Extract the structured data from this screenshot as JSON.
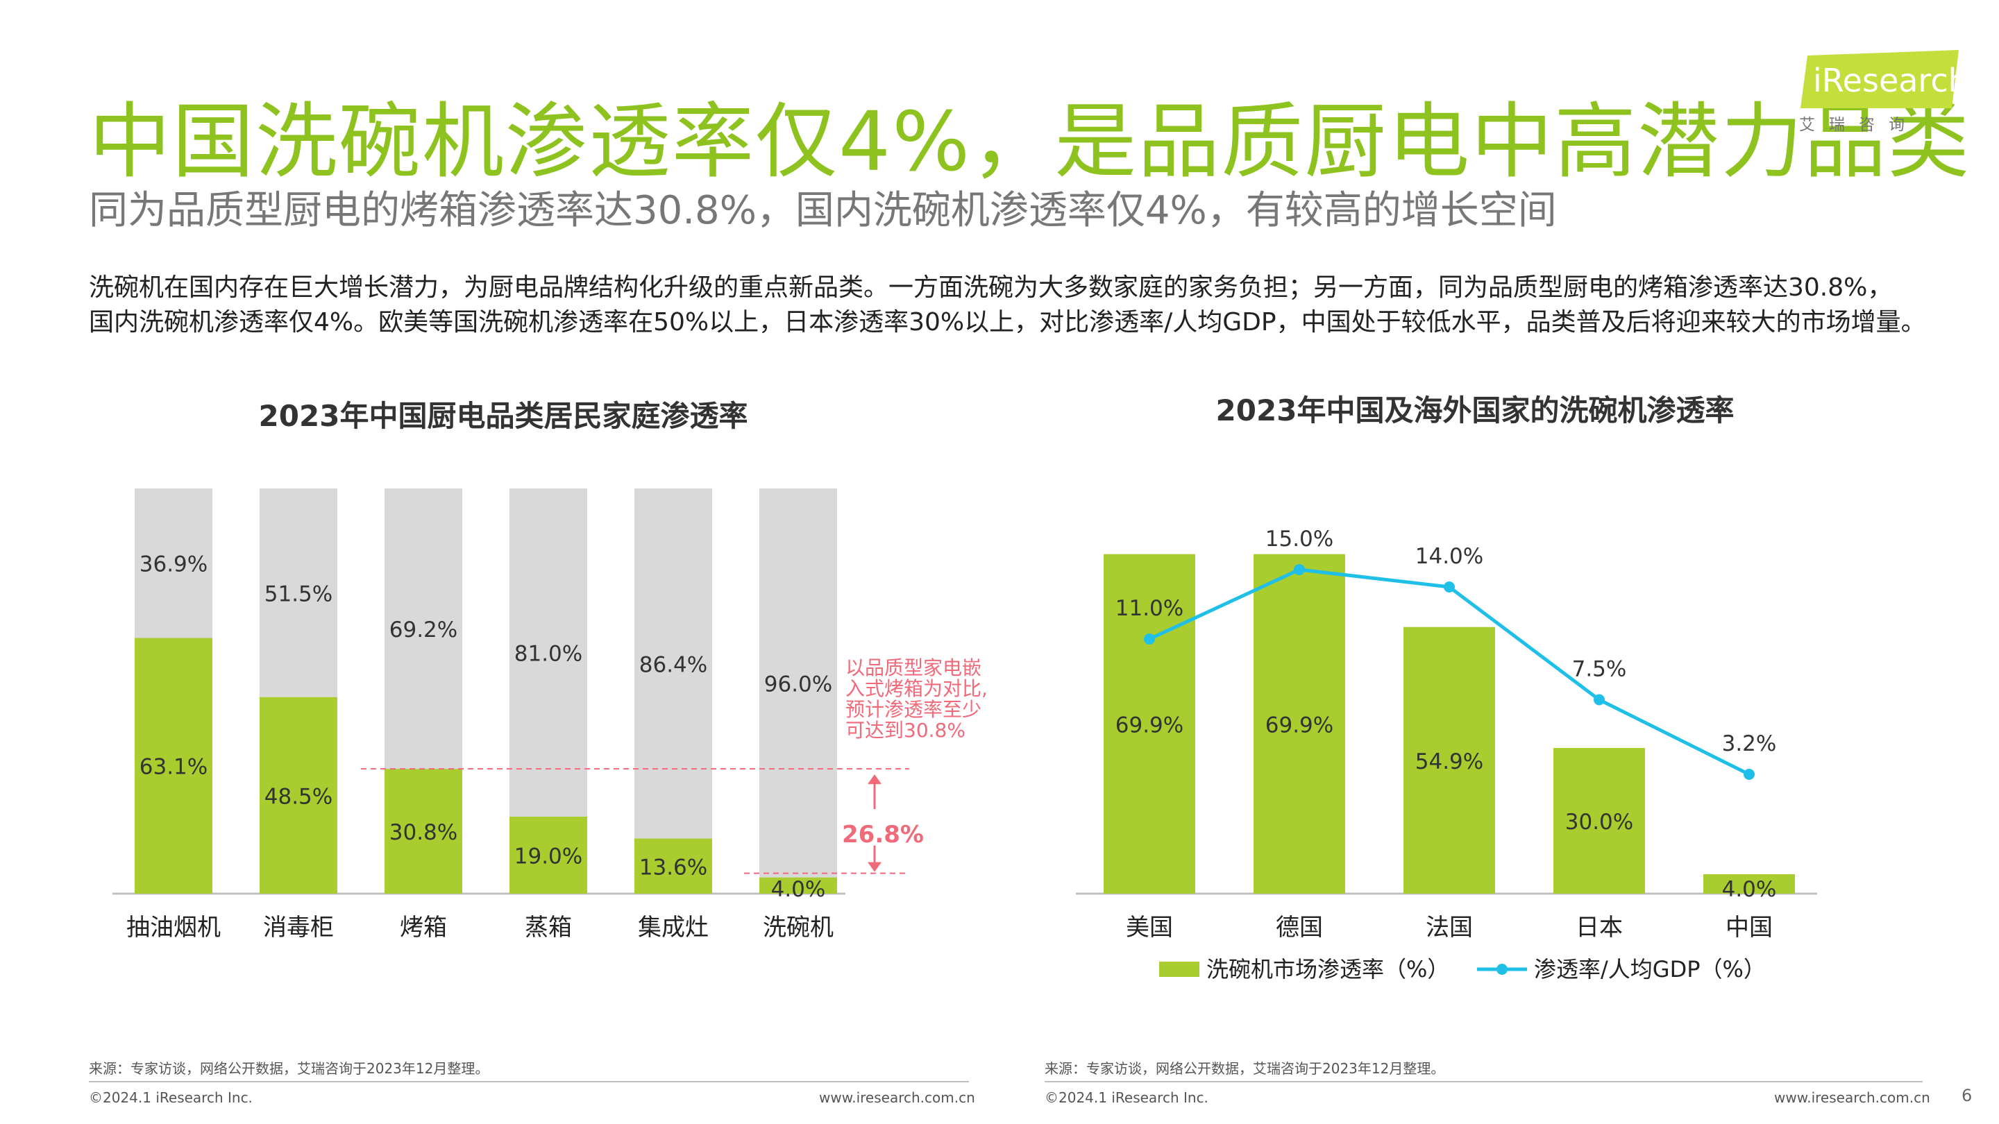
{
  "header": {
    "title": "中国洗碗机渗透率仅4%，是品质厨电中高潜力品类",
    "subtitle": "同为品质型厨电的烤箱渗透率达30.8%，国内洗碗机渗透率仅4%，有较高的增长空间",
    "description_line1": "洗碗机在国内存在巨大增长潜力，为厨电品牌结构化升级的重点新品类。一方面洗碗为大多数家庭的家务负担；另一方面，同为品质型厨电的烤箱渗透率达30.8%，",
    "description_line2": "国内洗碗机渗透率仅4%。欧美等国洗碗机渗透率在50%以上，日本渗透率30%以上，对比渗透率/人均GDP，中国处于较低水平，品类普及后将迎来较大的市场增量。"
  },
  "logo": {
    "text": "iResearch",
    "subtitle": "艾瑞咨询"
  },
  "colors": {
    "green": "#a9cc2e",
    "title_green": "#8dc21f",
    "grey": "#d9d9d9",
    "blue": "#1fbfe8",
    "red": "#f06a7a"
  },
  "chart_data": [
    {
      "type": "bar",
      "stacked": true,
      "title": "2023年中国厨电品类居民家庭渗透率",
      "categories": [
        "抽油烟机",
        "消毒柜",
        "烤箱",
        "蒸箱",
        "集成灶",
        "洗碗机"
      ],
      "series": [
        {
          "values": [
            63.1,
            48.5,
            30.8,
            19.0,
            13.6,
            4.0
          ],
          "labels": [
            "63.1%",
            "48.5%",
            "30.8%",
            "19.0%",
            "13.6%",
            "4.0%"
          ]
        },
        {
          "values": [
            36.9,
            51.5,
            69.2,
            81.0,
            86.4,
            96.0
          ],
          "labels": [
            "36.9%",
            "51.5%",
            "69.2%",
            "81.0%",
            "86.4%",
            "96.0%"
          ]
        }
      ],
      "ylim": [
        0,
        100
      ],
      "annotation": {
        "note_lines": [
          "以品质型家电嵌",
          "入式烤箱为对比,",
          "预计渗透率至少",
          "可达到30.8%"
        ],
        "gap_label": "26.8%"
      }
    },
    {
      "type": "bar+line",
      "title": "2023年中国及海外国家的洗碗机渗透率",
      "categories": [
        "美国",
        "德国",
        "法国",
        "日本",
        "中国"
      ],
      "series": [
        {
          "name": "洗碗机市场渗透率（%）",
          "type": "bar",
          "values": [
            69.9,
            69.9,
            54.9,
            30.0,
            4.0
          ],
          "labels": [
            "69.9%",
            "69.9%",
            "54.9%",
            "30.0%",
            "4.0%"
          ]
        },
        {
          "name": "渗透率/人均GDP（%）",
          "type": "line",
          "values": [
            11.0,
            15.0,
            14.0,
            7.5,
            3.2
          ],
          "labels": [
            "11.0%",
            "15.0%",
            "14.0%",
            "7.5%",
            "3.2%"
          ]
        }
      ],
      "legend_position": "bottom"
    }
  ],
  "footer": {
    "left_source": "来源：专家访谈，网络公开数据，艾瑞咨询于2023年12月整理。",
    "left_copyright": "©2024.1 iResearch Inc.",
    "left_url": "www.iresearch.com.cn",
    "right_source": "来源：专家访谈，网络公开数据，艾瑞咨询于2023年12月整理。",
    "right_copyright": "©2024.1 iResearch Inc.",
    "right_url": "www.iresearch.com.cn",
    "page_number": "6"
  }
}
